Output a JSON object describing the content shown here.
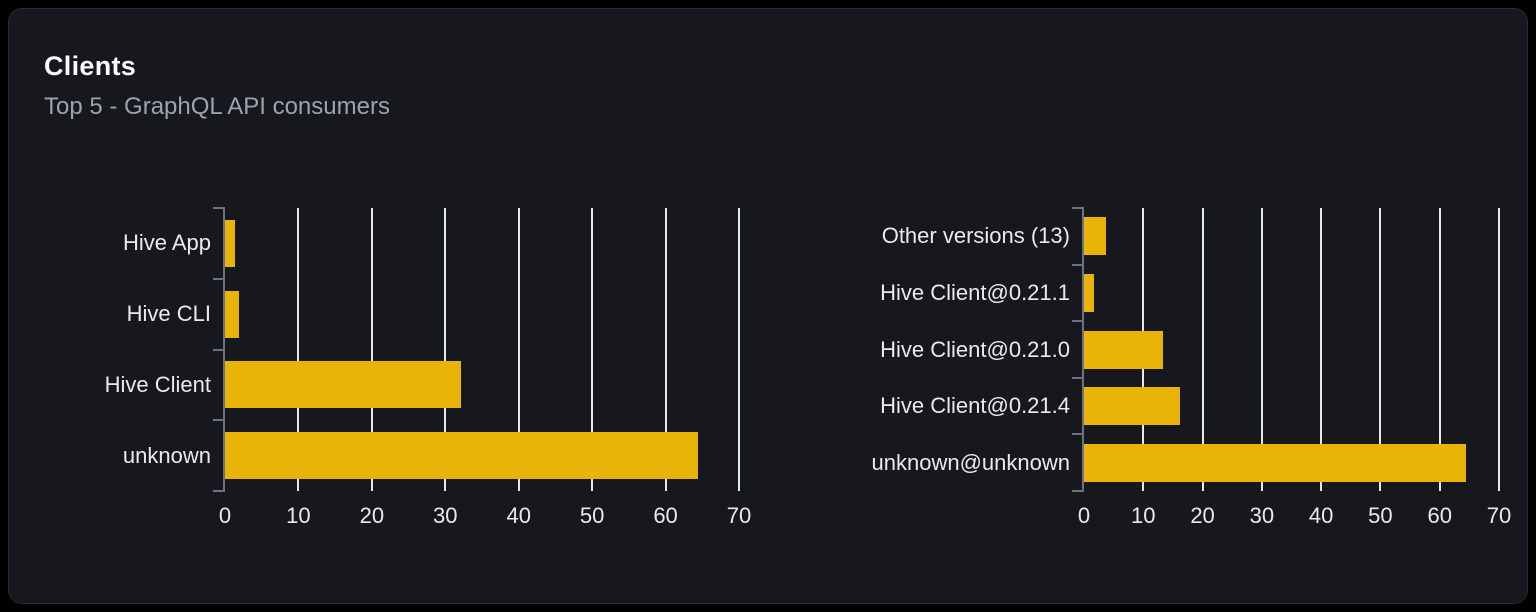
{
  "header": {
    "title": "Clients",
    "subtitle": "Top 5 - GraphQL API consumers"
  },
  "colors": {
    "page_bg": "#000000",
    "card_bg": "#16181d",
    "card_border": "#262a31",
    "bar": "#eab308",
    "gridline": "#e2e8f0",
    "axis": "#6b7280",
    "label_text": "#e8eaed",
    "title_text": "#fafafa",
    "subtitle_text": "#9ca3af"
  },
  "chart_data": [
    {
      "type": "bar",
      "orientation": "horizontal",
      "title": "",
      "xlabel": "",
      "ylabel": "",
      "legend": false,
      "grid": true,
      "xlim": [
        0,
        70
      ],
      "xticks": [
        0,
        10,
        20,
        30,
        40,
        50,
        60,
        70
      ],
      "categories": [
        "Hive App",
        "Hive CLI",
        "Hive Client",
        "unknown"
      ],
      "values": [
        1.3,
        1.9,
        32.2,
        64.4
      ]
    },
    {
      "type": "bar",
      "orientation": "horizontal",
      "title": "",
      "xlabel": "",
      "ylabel": "",
      "legend": false,
      "grid": true,
      "xlim": [
        0,
        70
      ],
      "xticks": [
        0,
        10,
        20,
        30,
        40,
        50,
        60,
        70
      ],
      "categories": [
        "Other versions (13)",
        "Hive Client@0.21.1",
        "Hive Client@0.21.0",
        "Hive Client@0.21.4",
        "unknown@unknown"
      ],
      "values": [
        3.7,
        1.7,
        13.4,
        16.2,
        64.5
      ]
    }
  ]
}
